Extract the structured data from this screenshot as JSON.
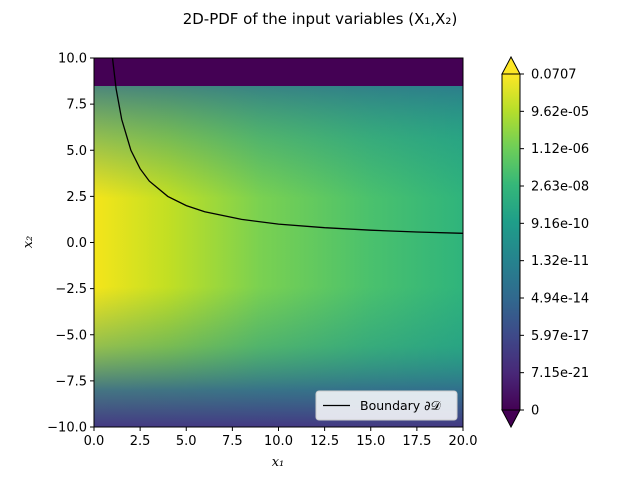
{
  "chart_data": {
    "type": "heatmap",
    "title": "2D-PDF of the input variables (X₁,X₂)",
    "xlabel": "x₁",
    "ylabel": "x₂",
    "xlim": [
      0,
      20
    ],
    "ylim": [
      -10,
      10
    ],
    "x_ticks": [
      "0.0",
      "2.5",
      "5.0",
      "7.5",
      "10.0",
      "12.5",
      "15.0",
      "17.5",
      "20.0"
    ],
    "x_tick_values": [
      0,
      2.5,
      5,
      7.5,
      10,
      12.5,
      15,
      17.5,
      20
    ],
    "y_ticks": [
      "10.0",
      "7.5",
      "5.0",
      "2.5",
      "0.0",
      "−2.5",
      "−5.0",
      "−7.5",
      "−10.0"
    ],
    "y_tick_values": [
      10,
      7.5,
      5,
      2.5,
      0,
      -2.5,
      -5,
      -7.5,
      -10
    ],
    "colormap": "viridis",
    "colorbar": {
      "tick_labels": [
        "0.0707",
        "9.62e-05",
        "1.12e-06",
        "2.63e-08",
        "9.16e-10",
        "1.32e-11",
        "4.94e-14",
        "5.97e-17",
        "7.15e-21",
        "0"
      ],
      "extend": "both"
    },
    "series": [
      {
        "name": "Boundary ∂𝒟",
        "type": "line",
        "color": "#000000",
        "x": [
          1,
          1.2,
          1.5,
          2,
          2.5,
          3,
          4,
          5,
          6,
          8,
          10,
          12.5,
          15,
          17.5,
          20
        ],
        "y": [
          10,
          8.33,
          6.67,
          5,
          4,
          3.33,
          2.5,
          2,
          1.67,
          1.25,
          1,
          0.8,
          0.667,
          0.571,
          0.5
        ]
      }
    ],
    "legend": {
      "location": "lower-right"
    }
  }
}
